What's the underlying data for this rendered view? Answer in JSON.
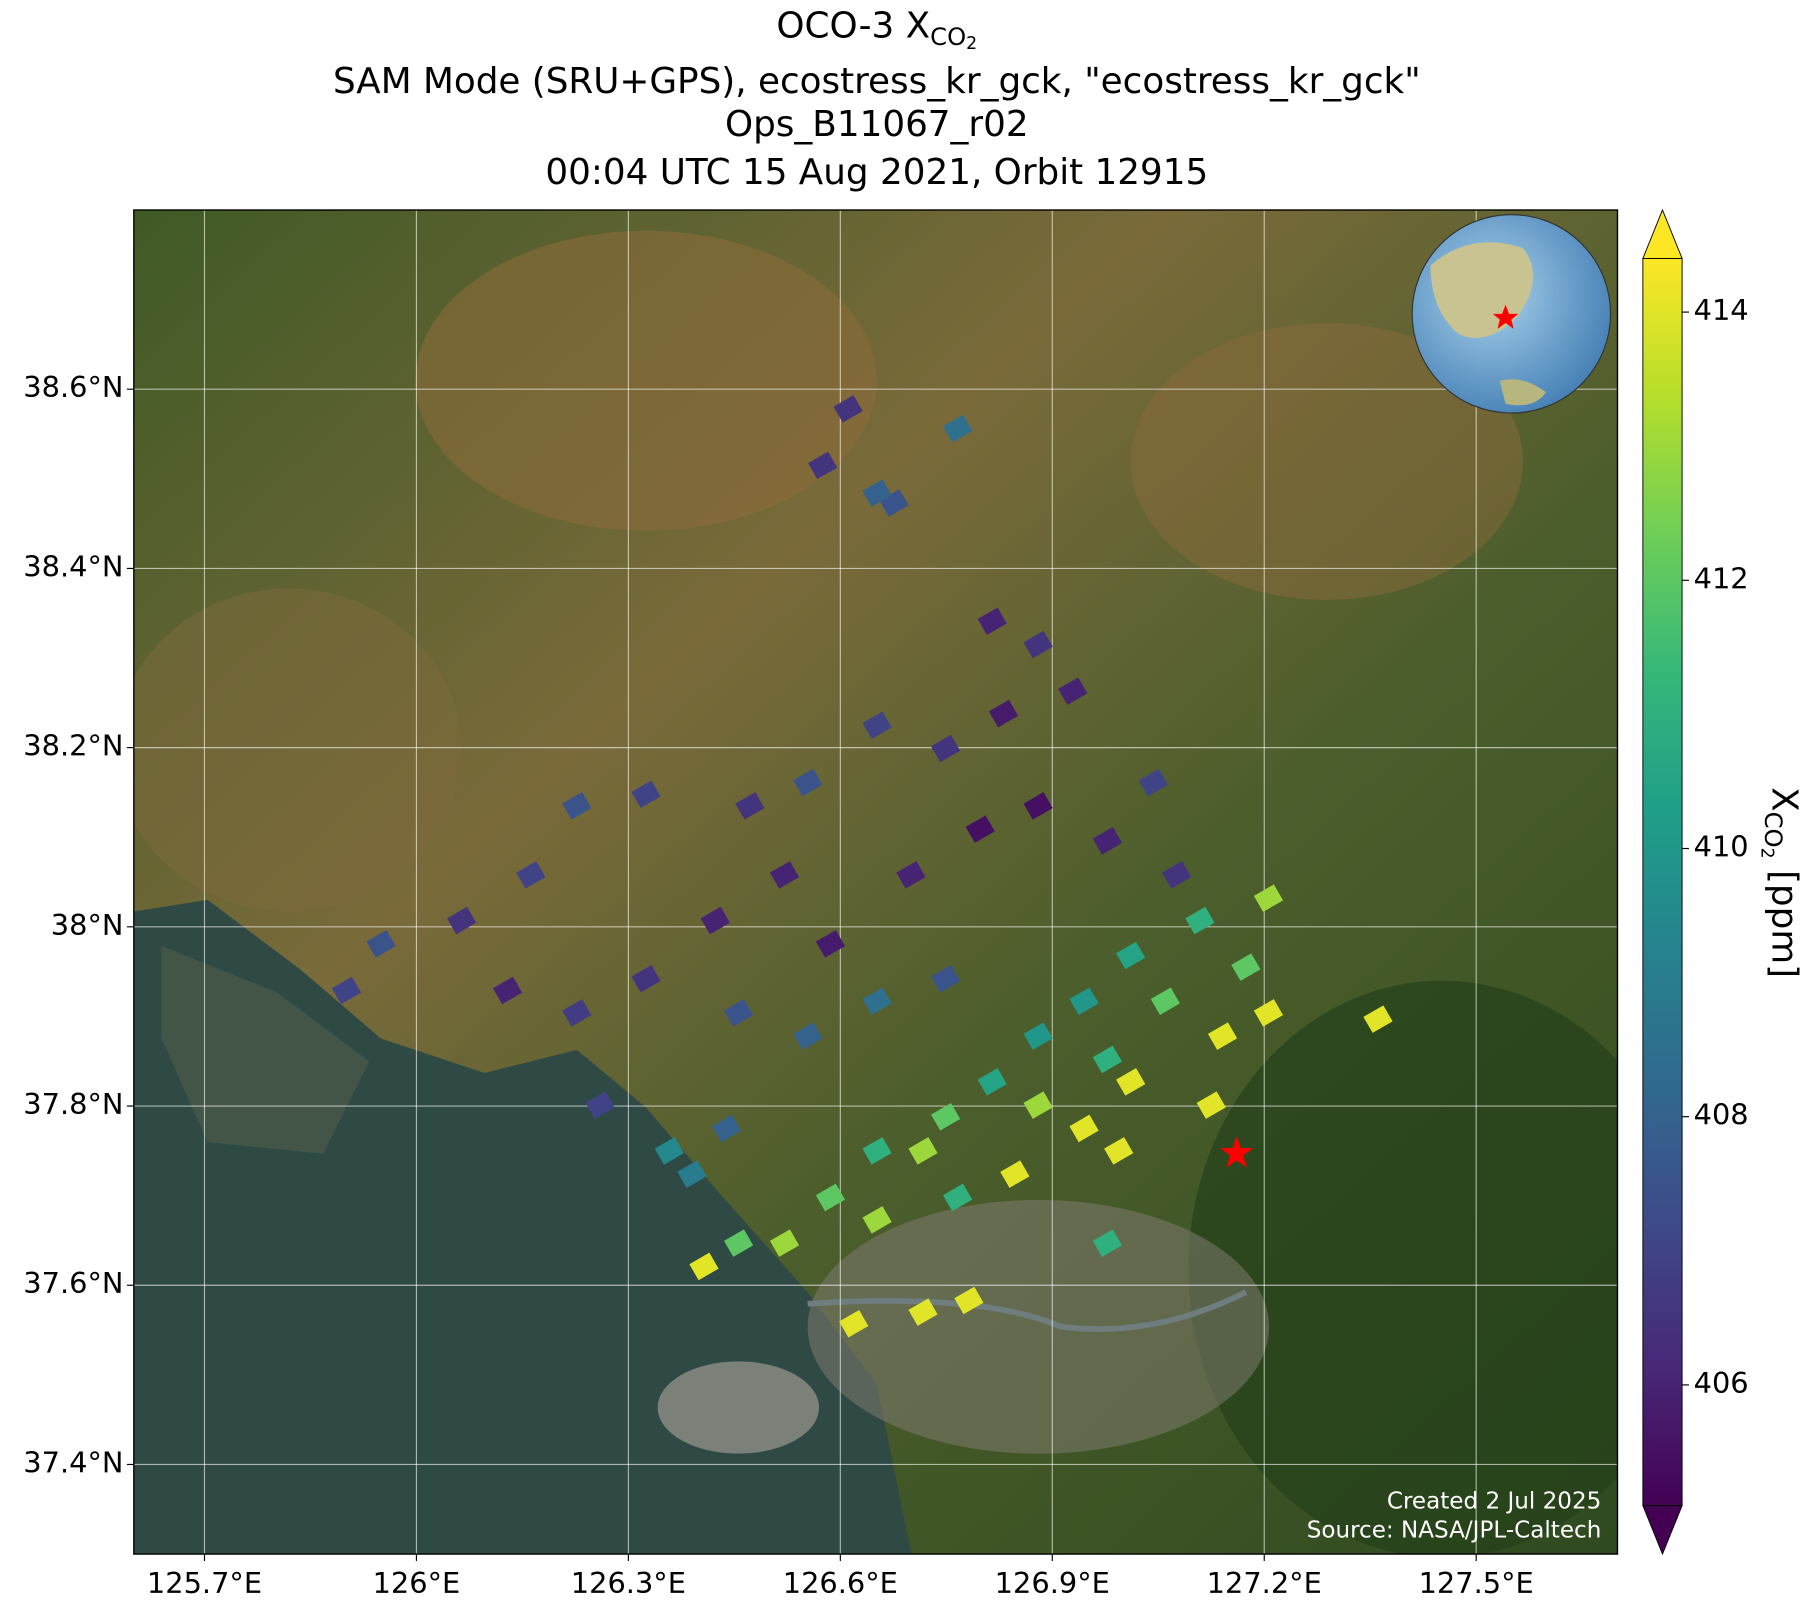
{
  "chart_data": {
    "type": "map",
    "title": {
      "main": "OCO-3 X",
      "sub": "CO",
      "subsub": "2"
    },
    "subtitle_lines": [
      "SAM Mode (SRU+GPS), ecostress_kr_gck, \"ecostress_kr_gck\"",
      "Ops_B11067_r02",
      "00:04 UTC 15 Aug 2021, Orbit 12915"
    ],
    "xlim": [
      125.6,
      127.7
    ],
    "ylim": [
      37.3,
      38.8
    ],
    "xticks": [
      {
        "value": 125.7,
        "label": "125.7°E"
      },
      {
        "value": 126,
        "label": "126°E"
      },
      {
        "value": 126.3,
        "label": "126.3°E"
      },
      {
        "value": 126.6,
        "label": "126.6°E"
      },
      {
        "value": 126.9,
        "label": "126.9°E"
      },
      {
        "value": 127.2,
        "label": "127.2°E"
      },
      {
        "value": 127.5,
        "label": "127.5°E"
      }
    ],
    "yticks": [
      {
        "value": 37.4,
        "label": "37.4°N"
      },
      {
        "value": 37.6,
        "label": "37.6°N"
      },
      {
        "value": 37.8,
        "label": "37.8°N"
      },
      {
        "value": 38,
        "label": "38°N"
      },
      {
        "value": 38.2,
        "label": "38.2°N"
      },
      {
        "value": 38.4,
        "label": "38.4°N"
      },
      {
        "value": 38.6,
        "label": "38.6°N"
      }
    ],
    "grid": true,
    "colorbar": {
      "label": "X",
      "label_sub": "CO",
      "label_subsub": "2",
      "label_unit": " [ppm]",
      "clim": [
        405.1,
        414.4
      ],
      "ticks": [
        406,
        408,
        410,
        412,
        414
      ],
      "extend": "both"
    },
    "colormap": [
      "#440154",
      "#482878",
      "#3e4989",
      "#31688e",
      "#26828e",
      "#1f9e89",
      "#35b779",
      "#6ece58",
      "#b5de2b",
      "#fde725"
    ],
    "soundings": {
      "lon": [
        126.611,
        126.766,
        126.575,
        126.676,
        126.652,
        126.815,
        126.88,
        126.929,
        126.831,
        126.749,
        126.652,
        126.554,
        126.472,
        126.325,
        126.227,
        126.162,
        126.064,
        125.95,
        125.901,
        126.129,
        126.227,
        126.325,
        126.423,
        126.521,
        126.586,
        126.7,
        126.798,
        126.88,
        126.978,
        127.043,
        127.076,
        126.456,
        126.554,
        126.652,
        126.749,
        126.945,
        127.011,
        127.109,
        127.174,
        127.206,
        127.141,
        127.06,
        126.978,
        126.88,
        126.815,
        126.749,
        126.717,
        126.652,
        126.586,
        126.521,
        126.456,
        126.407,
        126.39,
        126.439,
        126.88,
        126.945,
        126.994,
        127.011,
        126.847,
        126.766,
        126.717,
        126.782,
        126.652,
        126.26,
        126.358,
        127.206,
        127.361,
        127.125,
        126.978,
        126.619
      ],
      "lat": [
        38.578,
        38.556,
        38.515,
        38.473,
        38.484,
        38.341,
        38.315,
        38.263,
        38.238,
        38.199,
        38.225,
        38.161,
        38.135,
        38.148,
        38.135,
        38.058,
        38.007,
        37.981,
        37.929,
        37.929,
        37.904,
        37.942,
        38.007,
        38.058,
        37.981,
        38.058,
        38.109,
        38.135,
        38.096,
        38.161,
        38.058,
        37.904,
        37.878,
        37.917,
        37.942,
        37.917,
        37.968,
        38.007,
        37.955,
        37.904,
        37.878,
        37.917,
        37.852,
        37.878,
        37.827,
        37.788,
        37.75,
        37.75,
        37.698,
        37.647,
        37.647,
        37.621,
        37.724,
        37.775,
        37.801,
        37.775,
        37.75,
        37.827,
        37.724,
        37.698,
        37.57,
        37.583,
        37.673,
        37.801,
        37.75,
        38.032,
        37.897,
        37.801,
        37.647,
        37.557
      ],
      "xco2": [
        406.5,
        408.5,
        406.5,
        407.5,
        408,
        406,
        406.5,
        406,
        405.8,
        406.5,
        407,
        407.5,
        406.5,
        407,
        407.5,
        407,
        406.5,
        407.5,
        407,
        406,
        406.8,
        406.5,
        406,
        406,
        405.8,
        406,
        405.5,
        405.5,
        406,
        407,
        406.5,
        407.5,
        408,
        408.5,
        407.5,
        410,
        410.5,
        411,
        412,
        414,
        414,
        412,
        411,
        410,
        410.5,
        412,
        413,
        411,
        412,
        413,
        412,
        414,
        409,
        408,
        413,
        414,
        414,
        414,
        414,
        411,
        414,
        414,
        413,
        407,
        409.5,
        413,
        414,
        414,
        411,
        414
      ]
    },
    "target": {
      "lon": 127.161,
      "lat": 37.747,
      "color": "#ff0000"
    },
    "annotations": [
      "Created 2 Jul 2025",
      "Source: NASA/JPL-Caltech"
    ]
  }
}
